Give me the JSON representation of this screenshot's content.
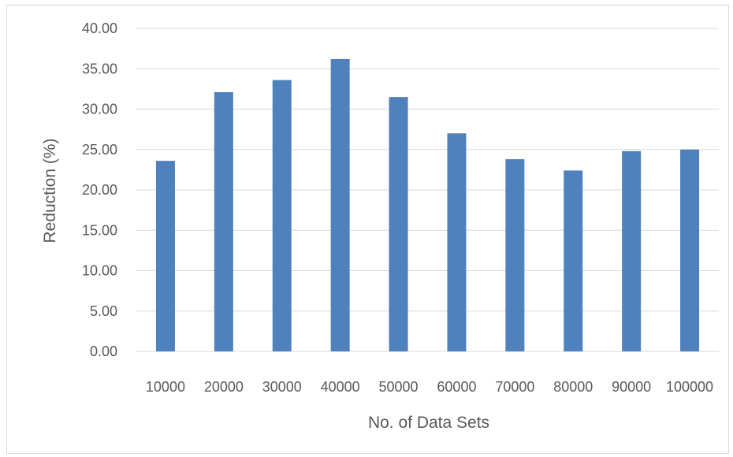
{
  "chart_data": {
    "type": "bar",
    "title": "",
    "xlabel": "No. of Data Sets",
    "ylabel": "Reduction (%)",
    "categories": [
      "10000",
      "20000",
      "30000",
      "40000",
      "50000",
      "60000",
      "70000",
      "80000",
      "90000",
      "100000"
    ],
    "series": [
      {
        "values": [
          23.6,
          32.1,
          33.6,
          36.2,
          31.5,
          27.0,
          23.8,
          22.4,
          24.8,
          25.0
        ]
      }
    ],
    "ylim": [
      0,
      40
    ],
    "yticks": [
      "0.00",
      "5.00",
      "10.00",
      "15.00",
      "20.00",
      "25.00",
      "30.00",
      "35.00",
      "40.00"
    ],
    "grid": true,
    "legend": "none",
    "colors": {
      "bar": "#4f81bd",
      "grid": "#d9d9d9",
      "text": "#595959",
      "border": "#d9d9d9"
    }
  }
}
